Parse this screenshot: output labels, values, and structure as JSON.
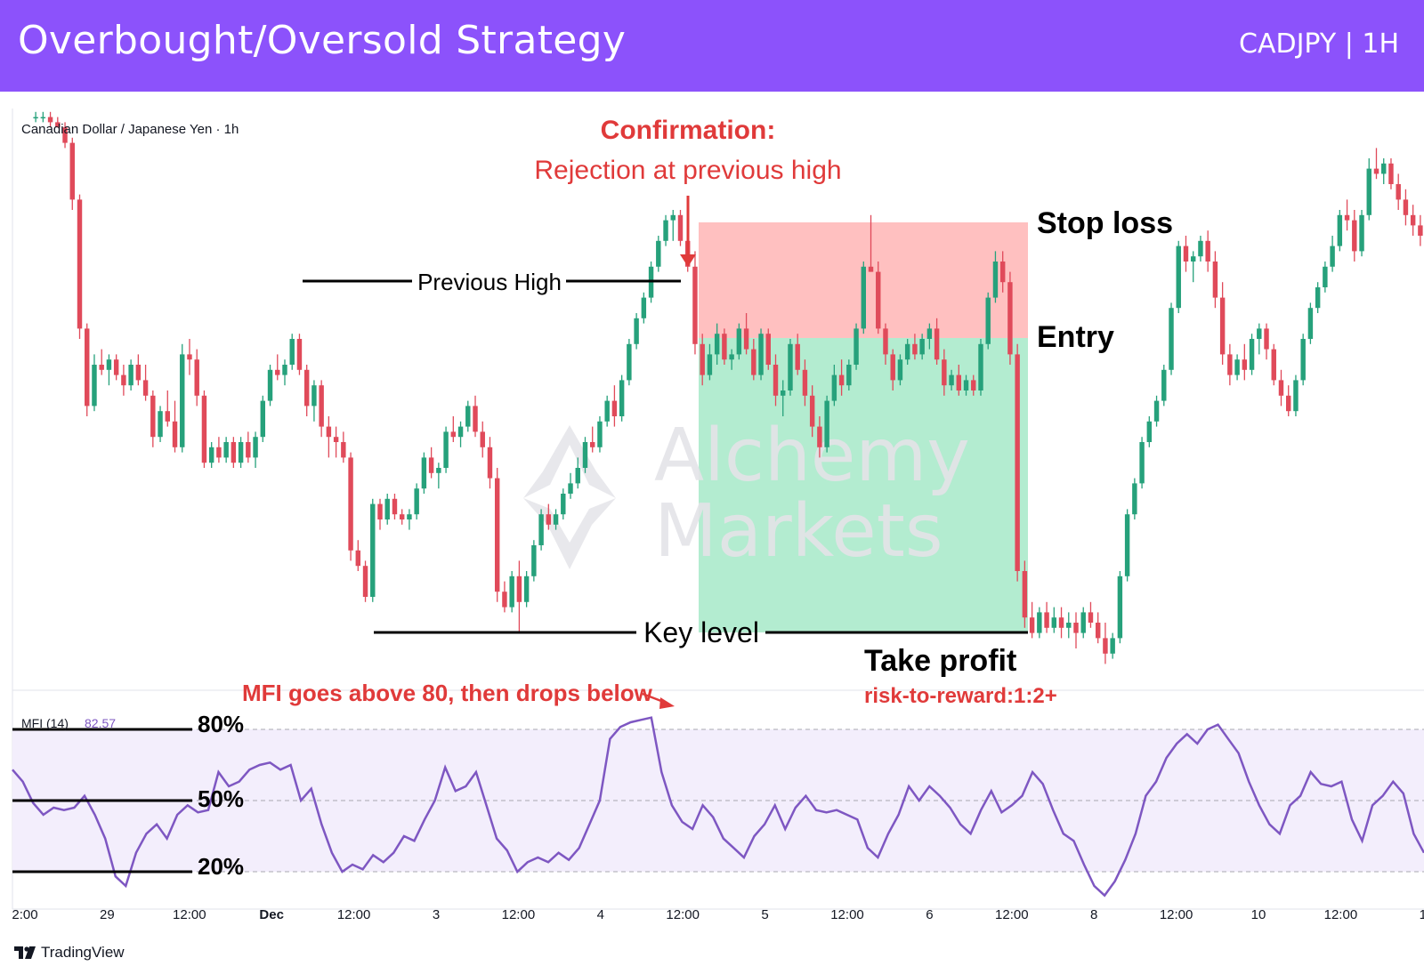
{
  "header": {
    "title": "Overbought/Oversold Strategy",
    "symbol": "CADJPY | 1H",
    "background": "#8c52fb"
  },
  "chart_data": {
    "type": "candlestick",
    "symbol_label": "Canadian Dollar / Japanese Yen · 1h",
    "up_color": "#26a17b",
    "down_color": "#e04a5a",
    "price_range": [
      0,
      100
    ],
    "candles": [
      [
        98,
        99,
        97,
        98
      ],
      [
        98,
        99,
        97,
        98
      ],
      [
        98,
        99,
        96,
        97
      ],
      [
        97,
        98,
        96,
        96
      ],
      [
        96,
        97,
        92,
        93
      ],
      [
        93,
        94,
        80,
        82
      ],
      [
        82,
        83,
        55,
        57
      ],
      [
        57,
        58,
        40,
        42
      ],
      [
        42,
        52,
        41,
        50
      ],
      [
        50,
        53,
        48,
        49
      ],
      [
        49,
        52,
        46,
        51
      ],
      [
        51,
        52,
        47,
        48
      ],
      [
        48,
        50,
        44,
        46
      ],
      [
        46,
        51,
        45,
        50
      ],
      [
        50,
        52,
        46,
        47
      ],
      [
        47,
        50,
        43,
        44
      ],
      [
        44,
        45,
        34,
        36
      ],
      [
        36,
        42,
        35,
        41
      ],
      [
        41,
        45,
        38,
        39
      ],
      [
        39,
        43,
        33,
        34
      ],
      [
        34,
        54,
        33,
        52
      ],
      [
        52,
        55,
        48,
        51
      ],
      [
        51,
        53,
        42,
        44
      ],
      [
        44,
        45,
        30,
        31
      ],
      [
        31,
        35,
        30,
        34
      ],
      [
        34,
        36,
        31,
        32
      ],
      [
        32,
        36,
        31,
        35
      ],
      [
        35,
        36,
        30,
        31
      ],
      [
        31,
        36,
        30,
        35
      ],
      [
        35,
        37,
        31,
        32
      ],
      [
        32,
        37,
        30,
        36
      ],
      [
        36,
        44,
        35,
        43
      ],
      [
        43,
        50,
        42,
        49
      ],
      [
        49,
        52,
        47,
        48
      ],
      [
        48,
        51,
        46,
        50
      ],
      [
        50,
        56,
        49,
        55
      ],
      [
        55,
        56,
        48,
        49
      ],
      [
        49,
        50,
        40,
        42
      ],
      [
        42,
        47,
        39,
        46
      ],
      [
        46,
        47,
        36,
        38
      ],
      [
        38,
        40,
        32,
        36
      ],
      [
        36,
        38,
        32,
        35
      ],
      [
        35,
        37,
        31,
        32
      ],
      [
        32,
        33,
        12,
        14
      ],
      [
        14,
        16,
        10,
        11
      ],
      [
        11,
        12,
        4,
        5
      ],
      [
        5,
        24,
        4,
        23
      ],
      [
        23,
        24,
        18,
        20
      ],
      [
        20,
        25,
        19,
        24
      ],
      [
        24,
        25,
        20,
        21
      ],
      [
        21,
        22,
        19,
        20
      ],
      [
        20,
        22,
        18,
        21
      ],
      [
        21,
        27,
        20,
        26
      ],
      [
        26,
        33,
        25,
        32
      ],
      [
        32,
        34,
        28,
        29
      ],
      [
        29,
        31,
        26,
        30
      ],
      [
        30,
        38,
        29,
        37
      ],
      [
        37,
        40,
        35,
        36
      ],
      [
        36,
        39,
        34,
        38
      ],
      [
        38,
        43,
        37,
        42
      ],
      [
        42,
        44,
        36,
        37
      ],
      [
        37,
        39,
        32,
        34
      ],
      [
        34,
        36,
        26,
        28
      ],
      [
        28,
        30,
        4,
        6
      ],
      [
        6,
        8,
        2,
        3
      ],
      [
        3,
        10,
        2,
        9
      ],
      [
        9,
        12,
        -2,
        4
      ],
      [
        4,
        10,
        3,
        9
      ],
      [
        9,
        16,
        8,
        15
      ],
      [
        15,
        22,
        14,
        21
      ],
      [
        21,
        23,
        18,
        19
      ],
      [
        19,
        22,
        18,
        21
      ],
      [
        21,
        26,
        20,
        25
      ],
      [
        25,
        29,
        24,
        27
      ],
      [
        27,
        32,
        26,
        30
      ],
      [
        30,
        36,
        29,
        35
      ],
      [
        35,
        38,
        33,
        34
      ],
      [
        34,
        40,
        33,
        39
      ],
      [
        39,
        44,
        38,
        43
      ],
      [
        43,
        46,
        38,
        40
      ],
      [
        40,
        48,
        39,
        47
      ],
      [
        47,
        55,
        46,
        54
      ],
      [
        54,
        60,
        53,
        59
      ],
      [
        59,
        64,
        58,
        63
      ],
      [
        63,
        70,
        62,
        69
      ],
      [
        69,
        75,
        68,
        74
      ],
      [
        74,
        79,
        73,
        78
      ],
      [
        78,
        80,
        74,
        79
      ],
      [
        79,
        80,
        73,
        74
      ],
      [
        74,
        76,
        68,
        69
      ],
      [
        69,
        72,
        52,
        54
      ],
      [
        54,
        56,
        46,
        48
      ],
      [
        48,
        54,
        47,
        52
      ],
      [
        52,
        58,
        50,
        56
      ],
      [
        56,
        57,
        50,
        51
      ],
      [
        51,
        53,
        49,
        52
      ],
      [
        52,
        58,
        51,
        57
      ],
      [
        57,
        60,
        52,
        53
      ],
      [
        53,
        55,
        47,
        48
      ],
      [
        48,
        57,
        47,
        56
      ],
      [
        56,
        57,
        49,
        50
      ],
      [
        50,
        52,
        42,
        44
      ],
      [
        44,
        47,
        40,
        45
      ],
      [
        45,
        55,
        44,
        54
      ],
      [
        54,
        56,
        48,
        49
      ],
      [
        49,
        51,
        42,
        44
      ],
      [
        44,
        46,
        36,
        38
      ],
      [
        38,
        40,
        32,
        34
      ],
      [
        34,
        44,
        33,
        43
      ],
      [
        43,
        50,
        42,
        48
      ],
      [
        48,
        51,
        44,
        46
      ],
      [
        46,
        51,
        45,
        50
      ],
      [
        50,
        58,
        49,
        57
      ],
      [
        57,
        70,
        56,
        69
      ],
      [
        69,
        79,
        68,
        68
      ],
      [
        68,
        70,
        56,
        57
      ],
      [
        57,
        58,
        50,
        52
      ],
      [
        52,
        53,
        45,
        47
      ],
      [
        47,
        52,
        46,
        51
      ],
      [
        51,
        55,
        50,
        54
      ],
      [
        54,
        56,
        51,
        52
      ],
      [
        52,
        56,
        51,
        55
      ],
      [
        55,
        58,
        53,
        57
      ],
      [
        57,
        59,
        50,
        51
      ],
      [
        51,
        53,
        44,
        46
      ],
      [
        46,
        49,
        45,
        48
      ],
      [
        48,
        50,
        44,
        45
      ],
      [
        45,
        48,
        44,
        47
      ],
      [
        47,
        48,
        44,
        45
      ],
      [
        45,
        55,
        44,
        54
      ],
      [
        54,
        64,
        53,
        63
      ],
      [
        63,
        72,
        62,
        70
      ],
      [
        70,
        72,
        64,
        66
      ],
      [
        66,
        68,
        50,
        52
      ],
      [
        52,
        54,
        8,
        10
      ],
      [
        10,
        12,
        -1,
        1
      ],
      [
        1,
        4,
        -3,
        -2
      ],
      [
        -2,
        3,
        -3,
        2
      ],
      [
        2,
        4,
        -2,
        -1
      ],
      [
        -1,
        3,
        -2,
        1
      ],
      [
        1,
        3,
        -3,
        -1
      ],
      [
        -1,
        2,
        -3,
        0
      ],
      [
        0,
        2,
        -5,
        -2
      ],
      [
        -2,
        3,
        -3,
        2
      ],
      [
        2,
        4,
        -1,
        0
      ],
      [
        0,
        2,
        -4,
        -3
      ],
      [
        -3,
        0,
        -8,
        -6
      ],
      [
        -6,
        -2,
        -7,
        -3
      ],
      [
        -3,
        10,
        -4,
        9
      ],
      [
        9,
        22,
        8,
        21
      ],
      [
        21,
        28,
        20,
        27
      ],
      [
        27,
        36,
        26,
        35
      ],
      [
        35,
        40,
        34,
        39
      ],
      [
        39,
        44,
        38,
        43
      ],
      [
        43,
        50,
        42,
        49
      ],
      [
        49,
        62,
        48,
        61
      ],
      [
        61,
        74,
        60,
        73
      ],
      [
        73,
        75,
        68,
        70
      ],
      [
        70,
        72,
        66,
        71
      ],
      [
        71,
        75,
        70,
        74
      ],
      [
        74,
        76,
        68,
        70
      ],
      [
        70,
        72,
        61,
        63
      ],
      [
        63,
        66,
        50,
        52
      ],
      [
        52,
        54,
        46,
        48
      ],
      [
        48,
        52,
        47,
        51
      ],
      [
        51,
        54,
        47,
        49
      ],
      [
        49,
        56,
        48,
        55
      ],
      [
        55,
        58,
        52,
        57
      ],
      [
        57,
        58,
        51,
        53
      ],
      [
        53,
        54,
        46,
        47
      ],
      [
        47,
        49,
        42,
        44
      ],
      [
        44,
        46,
        40,
        41
      ],
      [
        41,
        48,
        40,
        47
      ],
      [
        47,
        56,
        46,
        55
      ],
      [
        55,
        62,
        54,
        61
      ],
      [
        61,
        66,
        60,
        65
      ],
      [
        65,
        70,
        64,
        69
      ],
      [
        69,
        75,
        68,
        73
      ],
      [
        73,
        80,
        72,
        79
      ],
      [
        79,
        82,
        76,
        78
      ],
      [
        78,
        80,
        70,
        72
      ],
      [
        72,
        80,
        71,
        79
      ],
      [
        79,
        90,
        78,
        88
      ],
      [
        88,
        92,
        86,
        87
      ],
      [
        87,
        90,
        85,
        89
      ],
      [
        89,
        90,
        84,
        85
      ],
      [
        85,
        87,
        80,
        82
      ],
      [
        82,
        84,
        77,
        79
      ],
      [
        79,
        81,
        75,
        77
      ],
      [
        77,
        79,
        73,
        75
      ]
    ],
    "mfi": {
      "label": "MFI (14)",
      "value_label": "82.57",
      "line_color": "#7e57c2",
      "range": [
        0,
        100
      ],
      "levels": [
        "80%",
        "50%",
        "20%"
      ],
      "values": [
        63,
        58,
        49,
        44,
        47,
        46,
        47,
        52,
        44,
        34,
        18,
        14,
        28,
        36,
        40,
        34,
        44,
        48,
        45,
        46,
        62,
        56,
        58,
        63,
        65,
        66,
        63,
        65,
        50,
        55,
        40,
        28,
        20,
        23,
        21,
        27,
        24,
        28,
        35,
        33,
        42,
        50,
        64,
        54,
        56,
        62,
        48,
        34,
        29,
        20,
        24,
        26,
        24,
        28,
        25,
        30,
        40,
        50,
        76,
        81,
        83,
        84,
        85,
        62,
        48,
        41,
        38,
        48,
        43,
        34,
        30,
        26,
        35,
        40,
        48,
        38,
        47,
        52,
        46,
        45,
        46,
        44,
        42,
        30,
        26,
        36,
        44,
        56,
        50,
        56,
        52,
        47,
        40,
        36,
        46,
        54,
        45,
        48,
        52,
        62,
        57,
        46,
        36,
        33,
        23,
        14,
        10,
        16,
        25,
        36,
        52,
        58,
        68,
        74,
        78,
        74,
        80,
        82,
        76,
        70,
        58,
        48,
        40,
        36,
        48,
        52,
        62,
        57,
        56,
        58,
        42,
        33,
        48,
        52,
        58,
        53,
        36,
        28
      ]
    },
    "x_ticks": [
      "2:00",
      "29",
      "12:00",
      "Dec",
      "12:00",
      "3",
      "12:00",
      "4",
      "12:00",
      "5",
      "12:00",
      "6",
      "12:00",
      "8",
      "12:00",
      "10",
      "12:00",
      "1"
    ]
  },
  "annotations": {
    "confirmation_title": "Confirmation:",
    "confirmation_text": "Rejection at previous high",
    "previous_high": "Previous High",
    "key_level": "Key level",
    "stop_loss": "Stop loss",
    "entry": "Entry",
    "take_profit": "Take profit",
    "risk_reward": "risk-to-reward:1:2+",
    "mfi_note": "MFI goes above 80, then drops below",
    "stop_zone_color": "#ffc0c0",
    "profit_zone_color": "#b3ecd0",
    "annotation_red": "#e03a3a"
  },
  "watermark": {
    "line1": "Alchemy",
    "line2": "Markets"
  },
  "footer": {
    "brand": "TradingView"
  }
}
